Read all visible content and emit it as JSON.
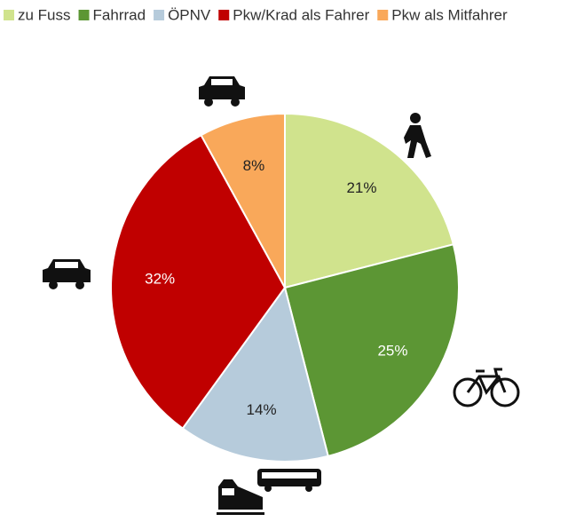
{
  "chart_data": {
    "type": "pie",
    "categories": [
      "zu Fuss",
      "Fahrrad",
      "ÖPNV",
      "Pkw/Krad als Fahrer",
      "Pkw als Mitfahrer"
    ],
    "values": [
      21,
      25,
      14,
      32,
      8
    ],
    "value_labels": [
      "21%",
      "25%",
      "14%",
      "32%",
      "8%"
    ],
    "colors": [
      "#d0e38d",
      "#5c9634",
      "#b6cbdb",
      "#c00000",
      "#f9a85a"
    ],
    "label_colors": [
      "#222222",
      "#ffffff",
      "#222222",
      "#ffffff",
      "#222222"
    ],
    "legend": "top"
  }
}
